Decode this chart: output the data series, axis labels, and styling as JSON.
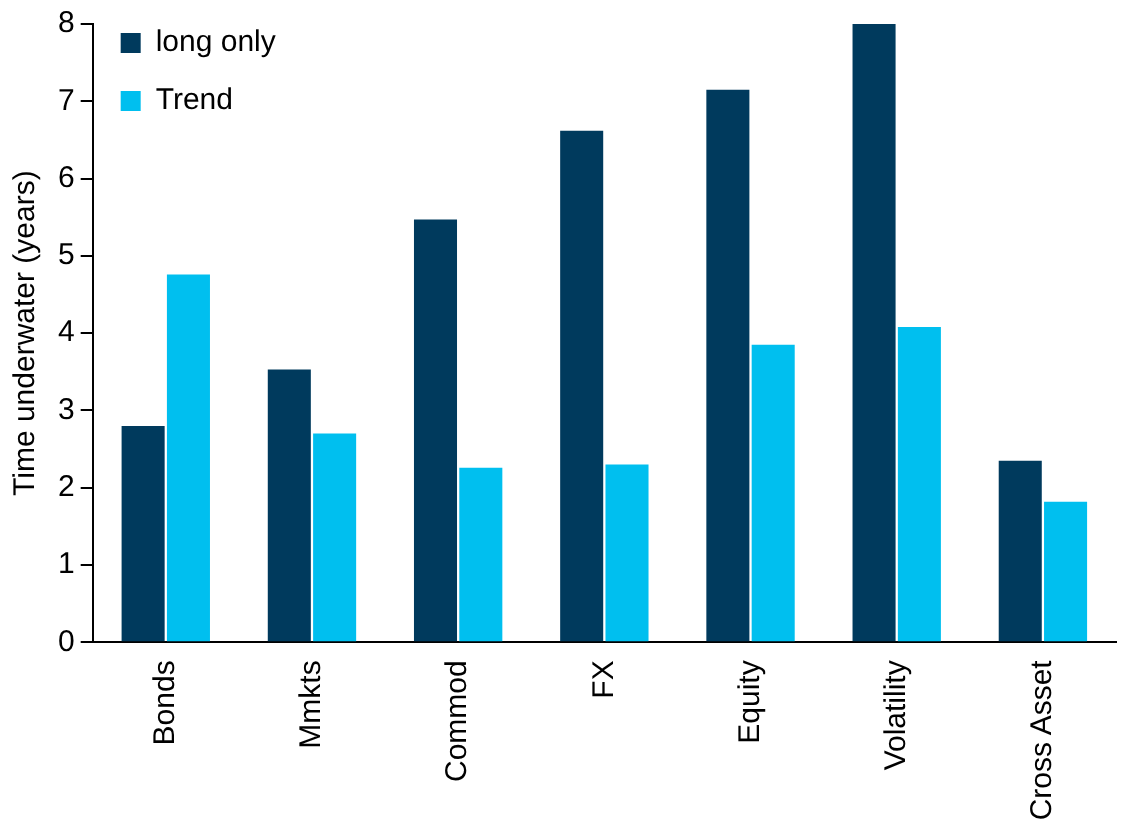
{
  "chart_data": {
    "type": "bar",
    "ylabel": "Time underwater (years)",
    "categories": [
      "Bonds",
      "Mmkts",
      "Commod",
      "FX",
      "Equity",
      "Volatility",
      "Cross Asset"
    ],
    "series": [
      {
        "name": "long only",
        "color": "#003a5d",
        "values": [
          2.8,
          3.53,
          5.47,
          6.62,
          7.15,
          8,
          2.35
        ]
      },
      {
        "name": "Trend",
        "color": "#00bfef",
        "values": [
          4.76,
          2.7,
          2.26,
          2.3,
          3.85,
          4.08,
          1.82
        ]
      }
    ],
    "ylim": [
      0,
      8
    ],
    "yticks": [
      0,
      1,
      2,
      3,
      4,
      5,
      6,
      7,
      8
    ],
    "grid": false,
    "legend": "top left"
  }
}
